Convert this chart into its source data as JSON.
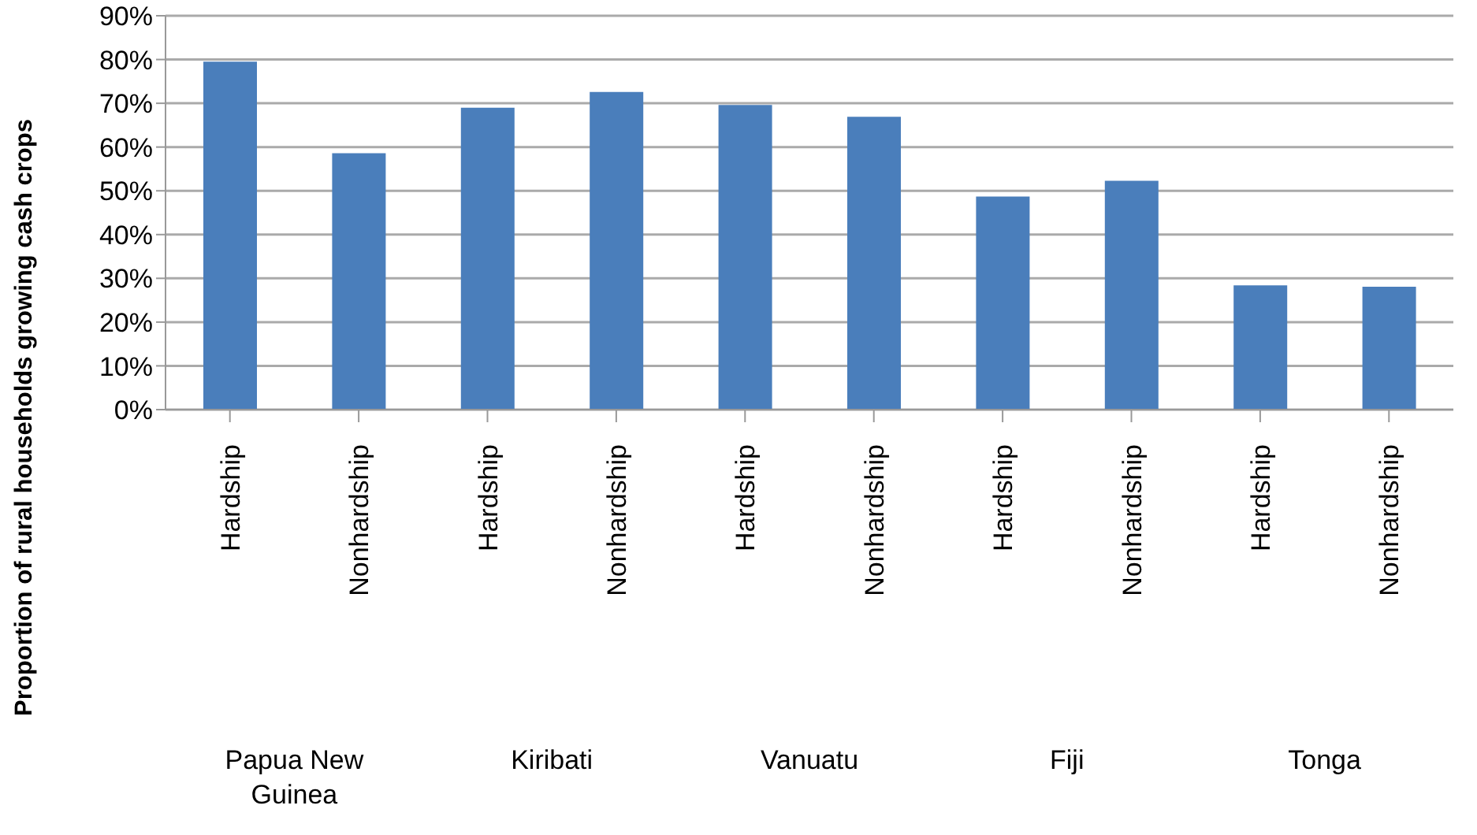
{
  "chart_data": {
    "type": "bar",
    "ylabel": "Proportion of rural households growing cash crops",
    "categories": [
      "Hardship",
      "Nonhardship",
      "Hardship",
      "Nonhardship",
      "Hardship",
      "Nonhardship",
      "Hardship",
      "Nonhardship",
      "Hardship",
      "Nonhardship"
    ],
    "values": [
      79.5,
      58.6,
      69.0,
      72.6,
      69.6,
      66.9,
      48.7,
      52.3,
      28.4,
      28.1
    ],
    "color": "#4a7ebb",
    "ylim": [
      0,
      90
    ],
    "yticks": [
      {
        "value": 0,
        "label": "0%"
      },
      {
        "value": 10,
        "label": "10%"
      },
      {
        "value": 20,
        "label": "20%"
      },
      {
        "value": 30,
        "label": "30%"
      },
      {
        "value": 40,
        "label": "40%"
      },
      {
        "value": 50,
        "label": "50%"
      },
      {
        "value": 60,
        "label": "60%"
      },
      {
        "value": 70,
        "label": "70%"
      },
      {
        "value": 80,
        "label": "80%"
      },
      {
        "value": 90,
        "label": "90%"
      }
    ],
    "grid": "y",
    "annotations": [
      "Papua New Guinea",
      "Kiribati",
      "Vanuatu",
      "Fiji",
      "Tonga"
    ]
  }
}
